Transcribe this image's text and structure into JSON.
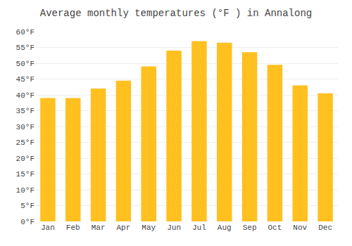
{
  "chart_data": {
    "type": "bar",
    "title": "Average monthly temperatures (°F ) in Annalong",
    "categories": [
      "Jan",
      "Feb",
      "Mar",
      "Apr",
      "May",
      "Jun",
      "Jul",
      "Aug",
      "Sep",
      "Oct",
      "Nov",
      "Dec"
    ],
    "values": [
      39,
      39,
      42,
      44.5,
      49,
      54,
      57,
      56.5,
      53.5,
      49.5,
      43,
      40.5
    ],
    "color": "#FFC020",
    "ylim": [
      0,
      60
    ],
    "yticks": [
      {
        "value": 0,
        "label": "0°F"
      },
      {
        "value": 5,
        "label": "5°F"
      },
      {
        "value": 10,
        "label": "10°F"
      },
      {
        "value": 15,
        "label": "15°F"
      },
      {
        "value": 20,
        "label": "20°F"
      },
      {
        "value": 25,
        "label": "25°F"
      },
      {
        "value": 30,
        "label": "30°F"
      },
      {
        "value": 35,
        "label": "35°F"
      },
      {
        "value": 40,
        "label": "40°F"
      },
      {
        "value": 45,
        "label": "45°F"
      },
      {
        "value": 50,
        "label": "50°F"
      },
      {
        "value": 55,
        "label": "55°F"
      },
      {
        "value": 60,
        "label": "60°F"
      }
    ],
    "grid": true
  }
}
